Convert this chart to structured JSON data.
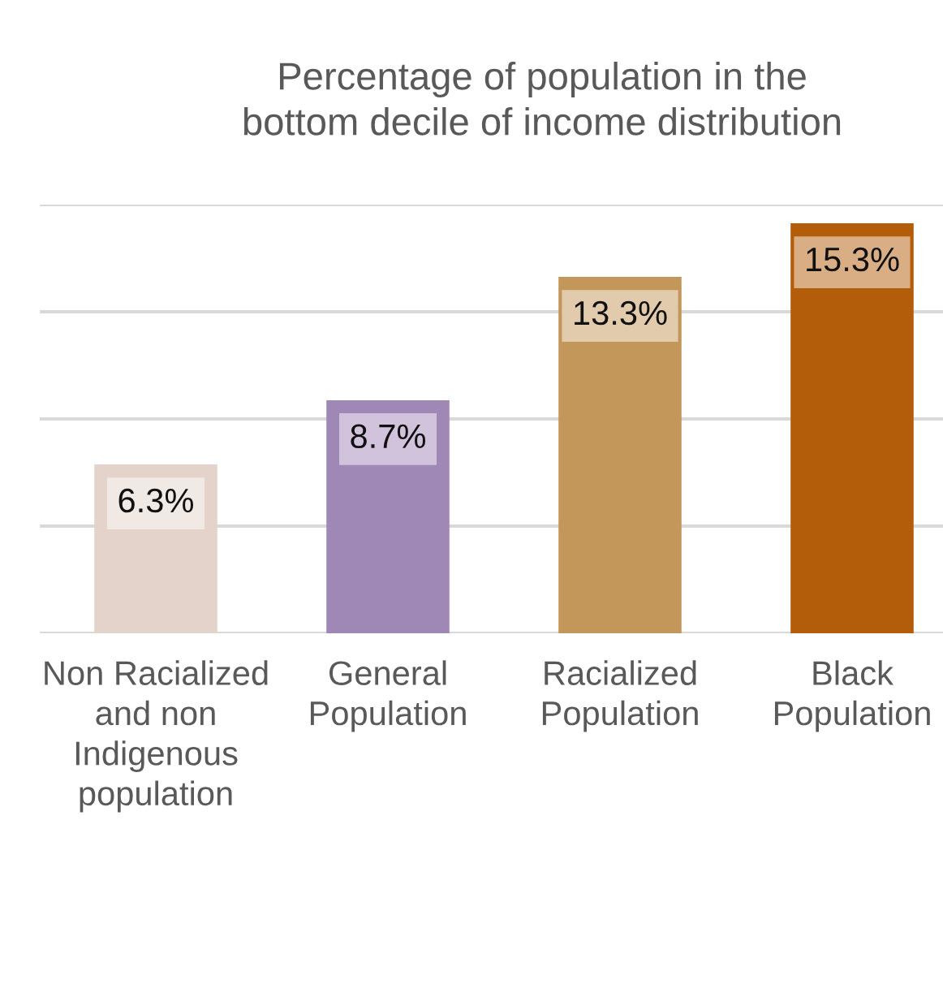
{
  "chart_data": {
    "type": "bar",
    "title": "Percentage of population in the\nbottom decile of income distribution",
    "categories": [
      "Non Racialized\nand non\nIndigenous\npopulation",
      "General\nPopulation",
      "Racialized\nPopulation",
      "Black\nPopulation"
    ],
    "values": [
      6.3,
      8.7,
      13.3,
      15.3
    ],
    "colors": [
      "#e3d3ca",
      "#a088b6",
      "#c3975a",
      "#b35c09"
    ],
    "value_labels": [
      "6.3%",
      "8.7%",
      "13.3%",
      "15.3%"
    ],
    "ylim": [
      0,
      16
    ],
    "yticks": [
      {
        "value": 0,
        "label": null
      },
      {
        "value": 4,
        "label": null
      },
      {
        "value": 8,
        "label": null
      },
      {
        "value": 12,
        "label": null
      },
      {
        "value": 16,
        "label": null
      }
    ],
    "grid": "y",
    "tick_labels": "x"
  }
}
